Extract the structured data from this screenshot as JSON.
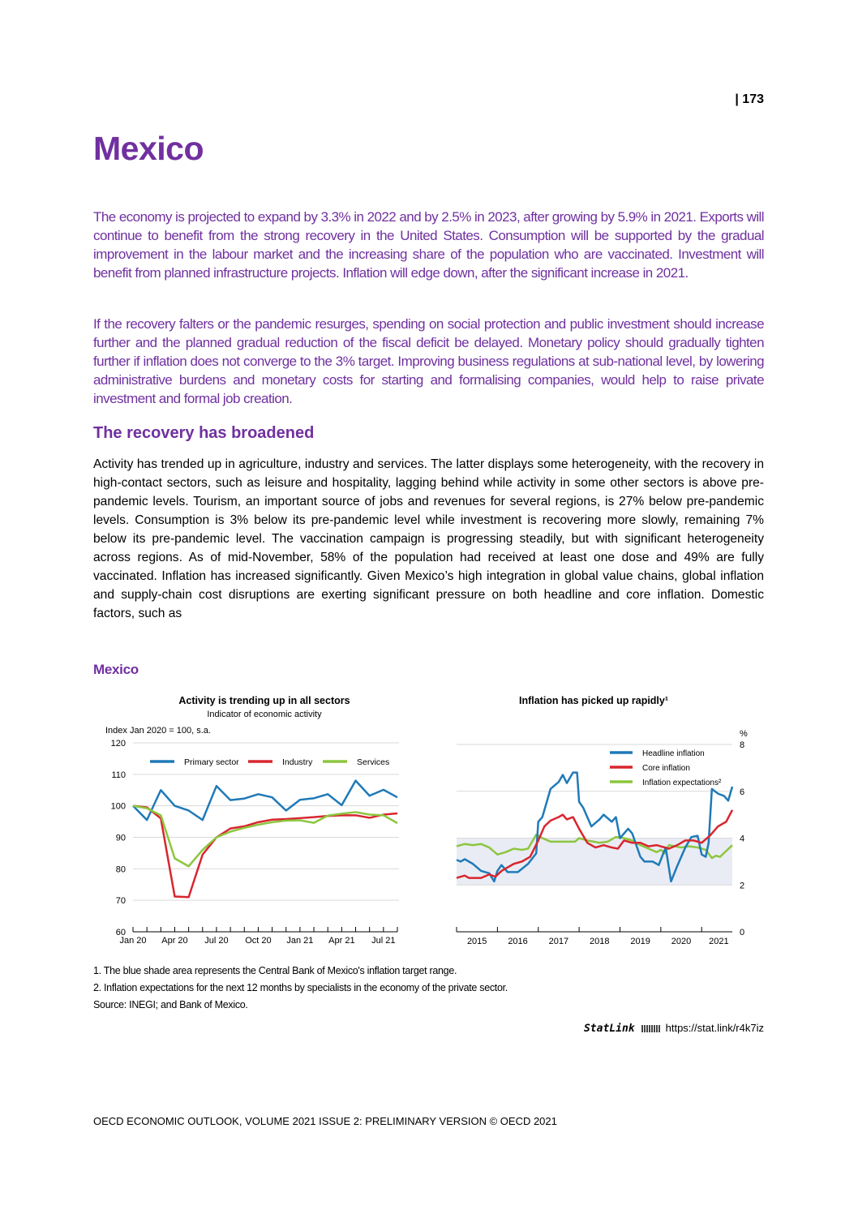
{
  "page_number": "| 173",
  "title": "Mexico",
  "summary": [
    "The economy is projected to expand by 3.3% in 2022 and by 2.5% in 2023, after growing by 5.9% in 2021. Exports will continue to benefit from the strong recovery in the United States. Consumption will be supported by the gradual improvement in the labour market and the increasing share of the population who are vaccinated. Investment will benefit from planned infrastructure projects. Inflation will edge down, after the significant increase in 2021.",
    "If the recovery falters or the pandemic resurges, spending on social protection and public investment should increase further and the planned gradual reduction of the fiscal deficit be delayed. Monetary policy should gradually tighten further if inflation does not converge to the 3% target. Improving business regulations at sub-national level, by lowering administrative burdens and monetary costs for starting and formalising companies, would help to raise private investment and formal job creation."
  ],
  "section_heading": "The recovery has broadened",
  "body": "Activity has trended up in agriculture, industry and services. The latter displays some heterogeneity, with the recovery in high-contact sectors, such as leisure and hospitality, lagging behind while activity in some other sectors is above pre-pandemic levels. Tourism, an important source of jobs and revenues for several regions, is 27% below pre-pandemic levels. Consumption is 3% below its pre-pandemic level while investment is recovering more slowly, remaining 7% below its pre-pandemic level. The vaccination campaign is progressing steadily, but with significant heterogeneity across regions. As of mid-November, 58% of the population had received at least one dose and 49% are fully vaccinated. Inflation has increased significantly. Given Mexico’s high integration in global value chains, global inflation and supply-chain cost disruptions are exerting significant pressure on both headline and core inflation. Domestic factors, such as",
  "figure_title": "Mexico",
  "chart_data": [
    {
      "type": "line",
      "title": "Activity is trending up in all sectors",
      "subtitle": "Indicator of economic activity",
      "ylabel": "Index Jan 2020 = 100, s.a.",
      "ylim": [
        60,
        120
      ],
      "yticks": [
        60,
        70,
        80,
        90,
        100,
        110,
        120
      ],
      "x": [
        "Jan 20",
        "Feb 20",
        "Mar 20",
        "Apr 20",
        "May 20",
        "Jun 20",
        "Jul 20",
        "Aug 20",
        "Sep 20",
        "Oct 20",
        "Nov 20",
        "Dec 20",
        "Jan 21",
        "Feb 21",
        "Mar 21",
        "Apr 21",
        "May 21",
        "Jun 21",
        "Jul 21",
        "Aug 21"
      ],
      "xtick_labels": [
        "Jan 20",
        "Apr 20",
        "Jul 20",
        "Oct 20",
        "Jan 21",
        "Apr 21",
        "Jul 21"
      ],
      "grid": true,
      "legend": "top",
      "series": [
        {
          "name": "Primary sector",
          "color": "#1f7ab8",
          "values": [
            100,
            95.5,
            105,
            100,
            98.5,
            95.5,
            106.3,
            101.8,
            102.3,
            103.7,
            102.7,
            98.5,
            101.9,
            102.4,
            103.7,
            100.2,
            108,
            103.2,
            105.1,
            102.7
          ]
        },
        {
          "name": "Industry",
          "color": "#d8262e",
          "values": [
            100,
            99.5,
            96,
            71.2,
            71,
            84.5,
            90,
            92.8,
            93.5,
            94.8,
            95.6,
            95.8,
            96.1,
            96.4,
            96.8,
            97,
            97,
            96.2,
            97.2,
            97.6
          ]
        },
        {
          "name": "Services",
          "color": "#8cc63f",
          "values": [
            100,
            99.2,
            97,
            83.3,
            80.8,
            86,
            90,
            91.8,
            93,
            94,
            94.8,
            95.3,
            95.4,
            94.6,
            96.9,
            97.5,
            98,
            97.2,
            97,
            94.5
          ]
        }
      ]
    },
    {
      "type": "line",
      "title": "Inflation has picked up rapidly¹",
      "ylabel": "%",
      "ylim": [
        0,
        8
      ],
      "yticks": [
        0,
        2,
        4,
        6,
        8
      ],
      "xlim": [
        2015,
        2021.75
      ],
      "xtick_labels": [
        "2015",
        "2016",
        "2017",
        "2018",
        "2019",
        "2020",
        "2021"
      ],
      "target_band": [
        2,
        4
      ],
      "target_band_color": "#e9ecf5",
      "grid": true,
      "legend": "top-right",
      "series": [
        {
          "name": "Headline inflation",
          "color": "#1f7ab8",
          "points": [
            [
              2015,
              3.07
            ],
            [
              2015.1,
              3.0
            ],
            [
              2015.2,
              3.1
            ],
            [
              2015.4,
              2.9
            ],
            [
              2015.6,
              2.6
            ],
            [
              2015.8,
              2.5
            ],
            [
              2015.92,
              2.15
            ],
            [
              2016.0,
              2.6
            ],
            [
              2016.1,
              2.85
            ],
            [
              2016.25,
              2.55
            ],
            [
              2016.5,
              2.55
            ],
            [
              2016.75,
              2.9
            ],
            [
              2016.95,
              3.35
            ],
            [
              2017.0,
              4.7
            ],
            [
              2017.1,
              4.9
            ],
            [
              2017.3,
              6.1
            ],
            [
              2017.5,
              6.4
            ],
            [
              2017.6,
              6.7
            ],
            [
              2017.7,
              6.35
            ],
            [
              2017.85,
              6.8
            ],
            [
              2017.95,
              6.8
            ],
            [
              2018.0,
              5.55
            ],
            [
              2018.1,
              5.3
            ],
            [
              2018.3,
              4.5
            ],
            [
              2018.5,
              4.8
            ],
            [
              2018.6,
              5.0
            ],
            [
              2018.8,
              4.7
            ],
            [
              2018.9,
              4.9
            ],
            [
              2019.0,
              4.0
            ],
            [
              2019.2,
              4.4
            ],
            [
              2019.3,
              4.2
            ],
            [
              2019.5,
              3.2
            ],
            [
              2019.6,
              3.0
            ],
            [
              2019.8,
              3.0
            ],
            [
              2019.95,
              2.85
            ],
            [
              2020.05,
              3.3
            ],
            [
              2020.12,
              3.6
            ],
            [
              2020.25,
              2.15
            ],
            [
              2020.4,
              2.8
            ],
            [
              2020.6,
              3.6
            ],
            [
              2020.75,
              4.05
            ],
            [
              2020.9,
              4.1
            ],
            [
              2021.0,
              3.3
            ],
            [
              2021.1,
              3.2
            ],
            [
              2021.17,
              3.8
            ],
            [
              2021.25,
              6.1
            ],
            [
              2021.4,
              5.9
            ],
            [
              2021.55,
              5.8
            ],
            [
              2021.65,
              5.6
            ],
            [
              2021.75,
              6.2
            ]
          ]
        },
        {
          "name": "Core inflation",
          "color": "#d8262e",
          "points": [
            [
              2015,
              2.3
            ],
            [
              2015.2,
              2.4
            ],
            [
              2015.3,
              2.3
            ],
            [
              2015.6,
              2.3
            ],
            [
              2015.8,
              2.45
            ],
            [
              2015.95,
              2.35
            ],
            [
              2016.1,
              2.6
            ],
            [
              2016.4,
              2.9
            ],
            [
              2016.6,
              3.0
            ],
            [
              2016.8,
              3.2
            ],
            [
              2017.0,
              3.9
            ],
            [
              2017.15,
              4.5
            ],
            [
              2017.3,
              4.75
            ],
            [
              2017.5,
              4.9
            ],
            [
              2017.6,
              5.0
            ],
            [
              2017.7,
              4.8
            ],
            [
              2017.85,
              4.9
            ],
            [
              2018.0,
              4.4
            ],
            [
              2018.2,
              3.8
            ],
            [
              2018.4,
              3.6
            ],
            [
              2018.6,
              3.7
            ],
            [
              2018.8,
              3.6
            ],
            [
              2018.95,
              3.55
            ],
            [
              2019.1,
              3.9
            ],
            [
              2019.3,
              3.8
            ],
            [
              2019.5,
              3.8
            ],
            [
              2019.7,
              3.65
            ],
            [
              2019.9,
              3.7
            ],
            [
              2020.1,
              3.6
            ],
            [
              2020.2,
              3.55
            ],
            [
              2020.4,
              3.7
            ],
            [
              2020.6,
              3.9
            ],
            [
              2020.8,
              3.9
            ],
            [
              2021.0,
              3.8
            ],
            [
              2021.2,
              4.1
            ],
            [
              2021.4,
              4.5
            ],
            [
              2021.6,
              4.7
            ],
            [
              2021.75,
              5.2
            ]
          ]
        },
        {
          "name": "Inflation expectations²",
          "color": "#8cc63f",
          "points": [
            [
              2015,
              3.65
            ],
            [
              2015.2,
              3.75
            ],
            [
              2015.4,
              3.7
            ],
            [
              2015.6,
              3.75
            ],
            [
              2015.8,
              3.6
            ],
            [
              2016.0,
              3.3
            ],
            [
              2016.2,
              3.4
            ],
            [
              2016.4,
              3.55
            ],
            [
              2016.6,
              3.5
            ],
            [
              2016.75,
              3.55
            ],
            [
              2016.95,
              4.15
            ],
            [
              2017.1,
              4.0
            ],
            [
              2017.3,
              3.85
            ],
            [
              2017.5,
              3.85
            ],
            [
              2017.7,
              3.85
            ],
            [
              2017.9,
              3.85
            ],
            [
              2018.0,
              4.0
            ],
            [
              2018.2,
              3.9
            ],
            [
              2018.5,
              3.8
            ],
            [
              2018.7,
              3.85
            ],
            [
              2018.9,
              4.05
            ],
            [
              2019.1,
              4.0
            ],
            [
              2019.3,
              3.9
            ],
            [
              2019.5,
              3.7
            ],
            [
              2019.7,
              3.55
            ],
            [
              2019.9,
              3.4
            ],
            [
              2020.0,
              3.5
            ],
            [
              2020.1,
              3.35
            ],
            [
              2020.2,
              3.7
            ],
            [
              2020.5,
              3.6
            ],
            [
              2020.7,
              3.65
            ],
            [
              2020.9,
              3.6
            ],
            [
              2021.1,
              3.5
            ],
            [
              2021.25,
              3.15
            ],
            [
              2021.35,
              3.25
            ],
            [
              2021.45,
              3.2
            ],
            [
              2021.6,
              3.45
            ],
            [
              2021.75,
              3.7
            ]
          ]
        }
      ]
    }
  ],
  "notes": [
    "1. The blue shade area represents the Central Bank of Mexico's inflation target range.",
    "2. Inflation expectations for the next 12 months by specialists in the economy of the private sector.",
    "Source: INEGI; and Bank of Mexico."
  ],
  "statlink": {
    "brand": "StatLink",
    "url": "https://stat.link/r4k7iz"
  },
  "footer": "OECD ECONOMIC OUTLOOK, VOLUME 2021 ISSUE 2: PRELIMINARY VERSION © OECD 2021"
}
